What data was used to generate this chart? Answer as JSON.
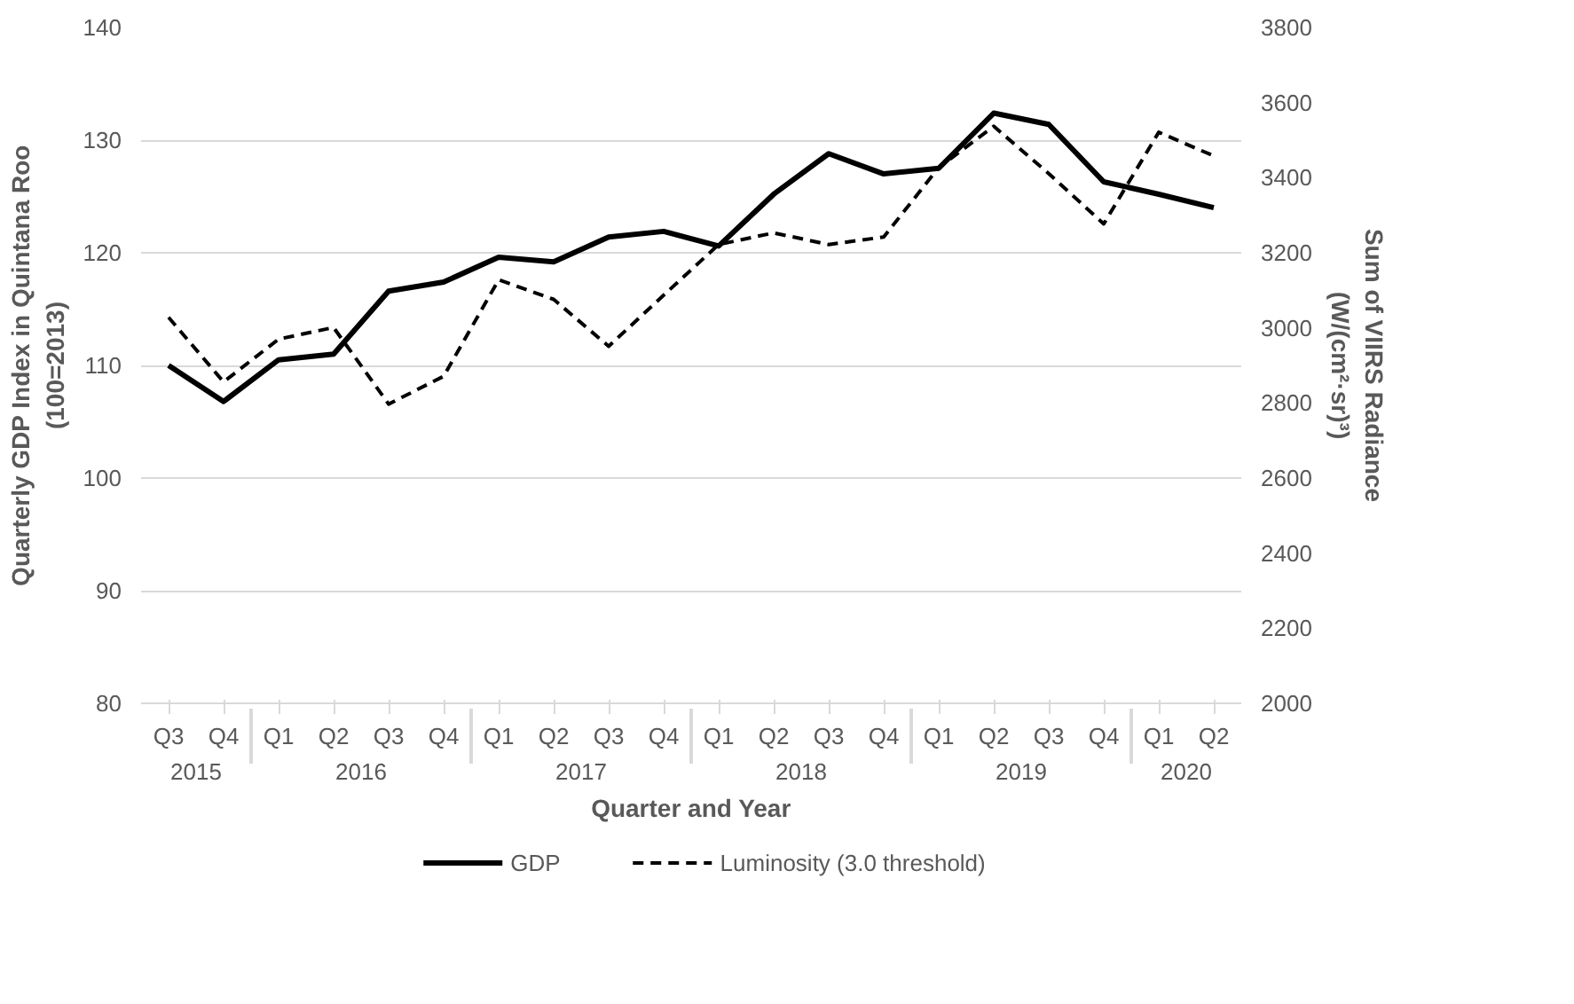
{
  "chart_data": {
    "type": "line",
    "xlabel": "Quarter and Year",
    "ylabel": "Quarterly GDP Index in Quintana Roo\n(100=2013)",
    "y2label": "Sum of VIIRS Radiance\n(W/(cm²·sr)³)",
    "categories": [
      "Q3",
      "Q4",
      "Q1",
      "Q2",
      "Q3",
      "Q4",
      "Q1",
      "Q2",
      "Q3",
      "Q4",
      "Q1",
      "Q2",
      "Q3",
      "Q4",
      "Q1",
      "Q2",
      "Q3",
      "Q4",
      "Q1",
      "Q2"
    ],
    "annotations": [
      "2015",
      "2016",
      "2017",
      "2018",
      "2019",
      "2020"
    ],
    "series": [
      {
        "name": "GDP",
        "color": "#000000",
        "line_style": "solid",
        "values": [
          110,
          106.8,
          110.5,
          111,
          116.6,
          117.4,
          119.6,
          119.2,
          121.4,
          121.9,
          120.6,
          125.2,
          128.8,
          127,
          127.5,
          132.4,
          131.4,
          126.3,
          125.2,
          124
        ]
      },
      {
        "name": "Luminosity (3.0 threshold)",
        "color": "#000000",
        "line_style": "dashed",
        "axis": "y2",
        "values": [
          3028,
          2856,
          2970,
          3001,
          2797,
          2871,
          3128,
          3076,
          2951,
          3087,
          3222,
          3253,
          3222,
          3242,
          3427,
          3537,
          3411,
          3277,
          3521,
          3458
        ]
      }
    ],
    "ylim": [
      80,
      140
    ],
    "yticks": [
      80,
      90,
      100,
      110,
      120,
      130,
      140
    ],
    "y2lim": [
      2000,
      3800
    ],
    "y2ticks": [
      2000,
      2200,
      2400,
      2600,
      2800,
      3000,
      3200,
      3400,
      3600,
      3800
    ],
    "grid": "y",
    "legend": "bottom",
    "marker": "none"
  }
}
